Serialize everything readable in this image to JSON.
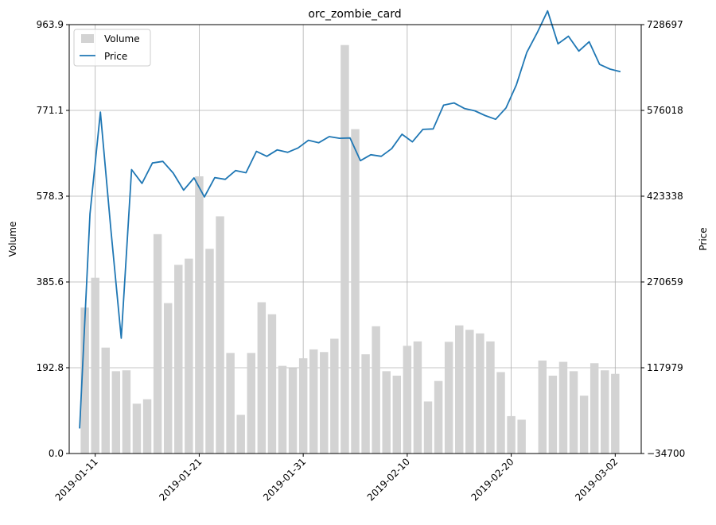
{
  "chart_data": {
    "type": "bar+line",
    "title": "orc_zombie_card",
    "xlabel": "",
    "ylabel_left": "Volume",
    "ylabel_right": "Price",
    "ylim_left": [
      0,
      963.9
    ],
    "ylim_right": [
      -34700,
      728697
    ],
    "yticks_left": [
      "0.0",
      "192.8",
      "385.6",
      "578.3",
      "771.1",
      "963.9"
    ],
    "yticks_right": [
      "−34700",
      "117979",
      "270659",
      "423338",
      "576018",
      "728697"
    ],
    "xticks": [
      "2019-01-11",
      "2019-01-21",
      "2019-01-31",
      "2019-02-10",
      "2019-02-20",
      "2019-03-02"
    ],
    "grid": true,
    "legend_position": "top-left",
    "legend": [
      {
        "label": "Volume",
        "kind": "bar",
        "color": "#d3d3d3"
      },
      {
        "label": "Price",
        "kind": "line",
        "color": "#1f77b4"
      }
    ],
    "colors": {
      "bar": "#d3d3d3",
      "line": "#1f77b4",
      "grid": "#b0b0b0"
    },
    "dates": [
      "2019-01-10",
      "2019-01-11",
      "2019-01-12",
      "2019-01-13",
      "2019-01-14",
      "2019-01-15",
      "2019-01-16",
      "2019-01-17",
      "2019-01-18",
      "2019-01-19",
      "2019-01-20",
      "2019-01-21",
      "2019-01-22",
      "2019-01-23",
      "2019-01-24",
      "2019-01-25",
      "2019-01-26",
      "2019-01-27",
      "2019-01-28",
      "2019-01-29",
      "2019-01-30",
      "2019-01-31",
      "2019-02-01",
      "2019-02-02",
      "2019-02-03",
      "2019-02-04",
      "2019-02-05",
      "2019-02-06",
      "2019-02-07",
      "2019-02-08",
      "2019-02-09",
      "2019-02-10",
      "2019-02-11",
      "2019-02-12",
      "2019-02-13",
      "2019-02-14",
      "2019-02-15",
      "2019-02-16",
      "2019-02-17",
      "2019-02-18",
      "2019-02-19",
      "2019-02-20",
      "2019-02-21",
      "2019-02-22",
      "2019-02-23",
      "2019-02-24",
      "2019-02-25",
      "2019-02-26",
      "2019-02-27",
      "2019-02-28",
      "2019-03-01",
      "2019-03-02",
      "2019-03-03"
    ],
    "volume": [
      328,
      395,
      238,
      185,
      187,
      112,
      122,
      493,
      338,
      424,
      438,
      623,
      460,
      533,
      226,
      87,
      226,
      340,
      313,
      197,
      192,
      214,
      234,
      228,
      258,
      918,
      729,
      223,
      286,
      185,
      175,
      242,
      252,
      117,
      163,
      251,
      288,
      278,
      270,
      252,
      183,
      84,
      76,
      0,
      209,
      175,
      206,
      185,
      130,
      203,
      187,
      179,
      null
    ],
    "price": [
      9928,
      391660,
      573030,
      365040,
      170600,
      470670,
      446120,
      482420,
      485290,
      464530,
      434030,
      455850,
      422060,
      456410,
      453330,
      469010,
      465040,
      503020,
      494280,
      505730,
      501330,
      509160,
      522870,
      518480,
      529330,
      526390,
      527030,
      486490,
      497200,
      494360,
      507930,
      533660,
      520020,
      542200,
      543090,
      585380,
      589250,
      579410,
      575320,
      566780,
      560220,
      580590,
      621730,
      679400,
      714410,
      753110,
      694490,
      708120,
      681640,
      698230,
      657930,
      649540,
      644930
    ]
  }
}
